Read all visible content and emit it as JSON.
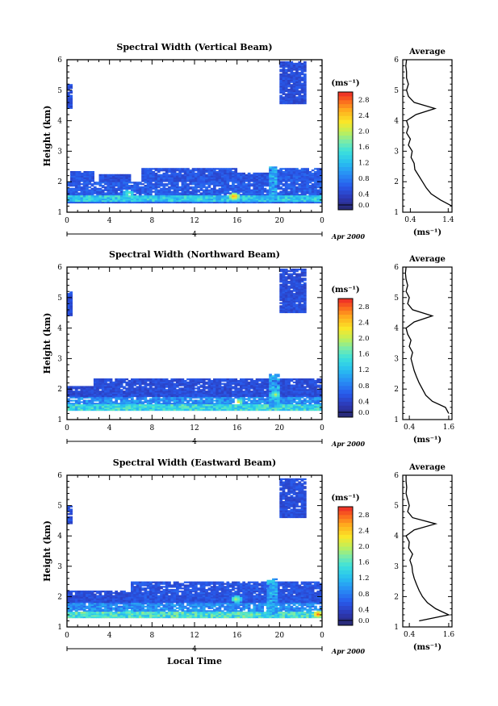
{
  "chart_data": [
    {
      "type": "heatmap",
      "title": "Spectral Width (Vertical Beam)",
      "ylabel": "Height (km)",
      "xticks": [
        "0",
        "4",
        "8",
        "12",
        "16",
        "20",
        "0"
      ],
      "xlim": [
        0,
        24
      ],
      "yticks": [
        "1",
        "2",
        "3",
        "4",
        "5",
        "6"
      ],
      "ylim": [
        1,
        6
      ],
      "date_day": "4",
      "date_label": "Apr 2000",
      "colorbar": {
        "unit_label": "(ms⁻¹)",
        "ticks": [
          "0.0",
          "0.4",
          "0.8",
          "1.2",
          "1.6",
          "2.0",
          "2.4",
          "2.8"
        ],
        "range": [
          0,
          3.0
        ]
      },
      "bands": [
        {
          "t0": 0.0,
          "t1": 24.0,
          "h0": 1.3,
          "h1": 2.0,
          "w": 0.6
        },
        {
          "t0": 0.0,
          "t1": 24.0,
          "h0": 1.35,
          "h1": 1.55,
          "w": 1.3
        },
        {
          "t0": 0.3,
          "t1": 2.5,
          "h0": 2.0,
          "h1": 2.35,
          "w": 0.55
        },
        {
          "t0": 3.0,
          "t1": 6.0,
          "h0": 2.0,
          "h1": 2.25,
          "w": 0.5
        },
        {
          "t0": 7.0,
          "t1": 16.0,
          "h0": 2.0,
          "h1": 2.45,
          "w": 0.55
        },
        {
          "t0": 16.0,
          "t1": 19.0,
          "h0": 2.0,
          "h1": 2.3,
          "w": 0.55
        },
        {
          "t0": 19.0,
          "t1": 24.0,
          "h0": 2.0,
          "h1": 2.45,
          "w": 0.6
        },
        {
          "t0": 19.0,
          "t1": 19.6,
          "h0": 1.4,
          "h1": 2.5,
          "w": 1.1
        },
        {
          "t0": 20.0,
          "t1": 22.5,
          "h0": 4.55,
          "h1": 5.95,
          "w": 0.5
        },
        {
          "t0": 0.0,
          "t1": 0.3,
          "h0": 4.4,
          "h1": 5.2,
          "w": 0.5
        }
      ],
      "hotspots": [
        {
          "t": 15.6,
          "h": 1.5,
          "w": 2.7
        },
        {
          "t": 5.7,
          "h": 1.6,
          "w": 1.8
        }
      ],
      "average_profile": {
        "title": "Average",
        "xlabel": "(ms⁻¹)",
        "xticks": [
          "0.4",
          "1.4"
        ],
        "xlim": [
          0.2,
          1.5
        ],
        "yticks": [
          "1",
          "2",
          "3",
          "4",
          "5",
          "6"
        ],
        "ylim": [
          1,
          6
        ],
        "height": [
          1.2,
          1.4,
          1.6,
          1.8,
          2.0,
          2.2,
          2.4,
          2.6,
          2.8,
          3.0,
          3.2,
          3.4,
          3.6,
          3.8,
          4.0,
          4.2,
          4.4,
          4.6,
          4.8,
          5.0,
          5.2,
          5.4,
          5.6,
          5.8,
          6.0
        ],
        "width": [
          1.5,
          1.2,
          0.95,
          0.82,
          0.72,
          0.62,
          0.52,
          0.5,
          0.42,
          0.45,
          0.35,
          0.4,
          0.3,
          0.35,
          0.3,
          0.55,
          1.05,
          0.5,
          0.35,
          0.3,
          0.35,
          0.3,
          0.3,
          0.28,
          0.3
        ]
      }
    },
    {
      "type": "heatmap",
      "title": "Spectral Width (Northward Beam)",
      "ylabel": "Height (km)",
      "xticks": [
        "0",
        "4",
        "8",
        "12",
        "16",
        "20",
        "0"
      ],
      "xlim": [
        0,
        24
      ],
      "yticks": [
        "1",
        "2",
        "3",
        "4",
        "5",
        "6"
      ],
      "ylim": [
        1,
        6
      ],
      "date_day": "4",
      "date_label": "Apr 2000",
      "colorbar": {
        "unit_label": "(ms⁻¹)",
        "ticks": [
          "0.0",
          "0.4",
          "0.8",
          "1.2",
          "1.6",
          "2.0",
          "2.4",
          "2.8"
        ],
        "range": [
          0,
          3.0
        ]
      },
      "bands": [
        {
          "t0": 0.0,
          "t1": 24.0,
          "h0": 1.3,
          "h1": 1.75,
          "w": 0.9
        },
        {
          "t0": 0.0,
          "t1": 24.0,
          "h0": 1.3,
          "h1": 1.5,
          "w": 1.4
        },
        {
          "t0": 0.0,
          "t1": 2.5,
          "h0": 1.75,
          "h1": 2.1,
          "w": 0.45
        },
        {
          "t0": 2.5,
          "t1": 24.0,
          "h0": 1.75,
          "h1": 2.35,
          "w": 0.5
        },
        {
          "t0": 19.0,
          "t1": 19.8,
          "h0": 1.4,
          "h1": 2.5,
          "w": 1.1
        },
        {
          "t0": 20.0,
          "t1": 22.5,
          "h0": 4.5,
          "h1": 5.95,
          "w": 0.5
        },
        {
          "t0": 0.0,
          "t1": 0.3,
          "h0": 4.4,
          "h1": 5.2,
          "w": 0.5
        }
      ],
      "hotspots": [
        {
          "t": 16.0,
          "h": 1.55,
          "w": 2.2
        },
        {
          "t": 19.5,
          "h": 1.8,
          "w": 2.0
        }
      ],
      "average_profile": {
        "title": "Average",
        "xlabel": "(ms⁻¹)",
        "xticks": [
          "0.4",
          "1.6"
        ],
        "xlim": [
          0.2,
          1.7
        ],
        "yticks": [
          "1",
          "2",
          "3",
          "4",
          "5",
          "6"
        ],
        "ylim": [
          1,
          6
        ],
        "height": [
          1.2,
          1.4,
          1.6,
          1.8,
          2.0,
          2.2,
          2.4,
          2.6,
          2.8,
          3.0,
          3.2,
          3.4,
          3.6,
          3.8,
          4.0,
          4.2,
          4.4,
          4.6,
          4.8,
          5.0,
          5.2,
          5.4,
          5.6,
          5.8,
          6.0
        ],
        "width": [
          1.6,
          1.5,
          1.1,
          0.9,
          0.8,
          0.7,
          0.62,
          0.55,
          0.5,
          0.45,
          0.5,
          0.4,
          0.45,
          0.35,
          0.3,
          0.55,
          1.1,
          0.5,
          0.35,
          0.4,
          0.3,
          0.35,
          0.3,
          0.28,
          0.3
        ]
      }
    },
    {
      "type": "heatmap",
      "title": "Spectral Width (Eastward Beam)",
      "ylabel": "Height (km)",
      "xlabel": "Local Time",
      "xticks": [
        "0",
        "4",
        "8",
        "12",
        "16",
        "20",
        "0"
      ],
      "xlim": [
        0,
        24
      ],
      "yticks": [
        "1",
        "2",
        "3",
        "4",
        "5",
        "6"
      ],
      "ylim": [
        1,
        6
      ],
      "date_day": "4",
      "date_label": "Apr 2000",
      "colorbar": {
        "unit_label": "(ms⁻¹)",
        "ticks": [
          "0.0",
          "0.4",
          "0.8",
          "1.2",
          "1.6",
          "2.0",
          "2.4",
          "2.8"
        ],
        "range": [
          0,
          3.0
        ]
      },
      "bands": [
        {
          "t0": 0.0,
          "t1": 24.0,
          "h0": 1.3,
          "h1": 1.8,
          "w": 0.9
        },
        {
          "t0": 0.0,
          "t1": 24.0,
          "h0": 1.3,
          "h1": 1.5,
          "w": 1.5
        },
        {
          "t0": 0.0,
          "t1": 6.0,
          "h0": 1.8,
          "h1": 2.2,
          "w": 0.5
        },
        {
          "t0": 6.0,
          "t1": 24.0,
          "h0": 1.8,
          "h1": 2.5,
          "w": 0.55
        },
        {
          "t0": 18.8,
          "t1": 19.8,
          "h0": 1.4,
          "h1": 2.6,
          "w": 1.1
        },
        {
          "t0": 20.0,
          "t1": 22.5,
          "h0": 4.6,
          "h1": 5.9,
          "w": 0.5
        },
        {
          "t0": 0.0,
          "t1": 0.3,
          "h0": 4.4,
          "h1": 5.0,
          "w": 0.5
        }
      ],
      "hotspots": [
        {
          "t": 23.5,
          "h": 1.4,
          "w": 2.8
        },
        {
          "t": 15.8,
          "h": 1.9,
          "w": 2.0
        },
        {
          "t": 5.7,
          "h": 1.45,
          "w": 1.8
        }
      ],
      "average_profile": {
        "title": "Average",
        "xlabel": "(ms⁻¹)",
        "xticks": [
          "0.4",
          "1.6"
        ],
        "xlim": [
          0.2,
          1.7
        ],
        "yticks": [
          "1",
          "2",
          "3",
          "4",
          "5",
          "6"
        ],
        "ylim": [
          1,
          6
        ],
        "height": [
          1.2,
          1.4,
          1.6,
          1.8,
          2.0,
          2.2,
          2.4,
          2.6,
          2.8,
          3.0,
          3.2,
          3.4,
          3.6,
          3.8,
          4.0,
          4.2,
          4.4,
          4.6,
          4.8,
          5.0,
          5.2,
          5.4,
          5.6,
          5.8,
          6.0
        ],
        "width": [
          0.7,
          1.6,
          1.2,
          0.95,
          0.8,
          0.7,
          0.62,
          0.55,
          0.5,
          0.48,
          0.42,
          0.5,
          0.38,
          0.4,
          0.3,
          0.55,
          1.2,
          0.5,
          0.35,
          0.4,
          0.35,
          0.3,
          0.32,
          0.3,
          0.3
        ]
      }
    }
  ]
}
